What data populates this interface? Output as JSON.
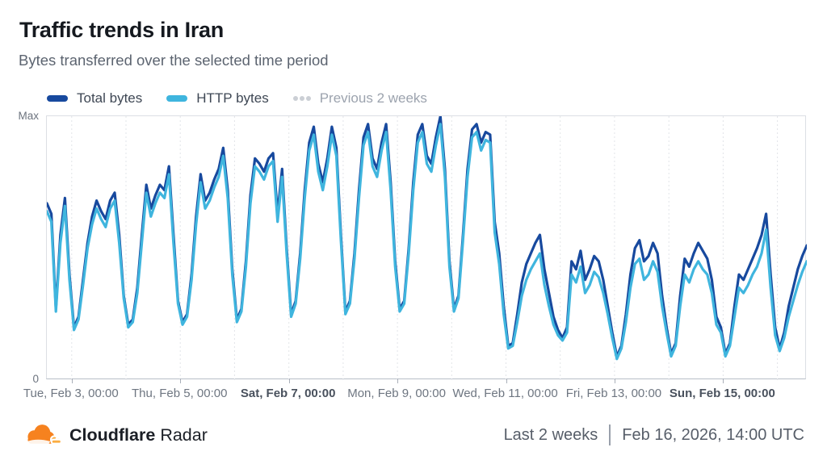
{
  "header": {
    "title": "Traffic trends in Iran",
    "subtitle": "Bytes transferred over the selected time period"
  },
  "legend": [
    {
      "label": "Total bytes",
      "color": "#17499E",
      "style": "solid"
    },
    {
      "label": "HTTP bytes",
      "color": "#3FB5DE",
      "style": "solid"
    },
    {
      "label": "Previous 2 weeks",
      "color": "#CBCFD5",
      "style": "dotted"
    }
  ],
  "chart_data": {
    "type": "line",
    "title": "Traffic trends in Iran",
    "subtitle": "Bytes transferred over the selected time period",
    "units": "percent_of_max",
    "grid": "vertical-daily-dashed",
    "legend_position": "top",
    "y_axis": {
      "max_label": "Max",
      "min_label": "0",
      "range": [
        0,
        100
      ]
    },
    "x_axis": {
      "total_hours": 336,
      "step_hours": 2,
      "first_gridline_offset_hours": 11,
      "gridline_every_hours": 24,
      "label_every_hours": 48,
      "tick_labels": [
        {
          "label": "Tue, Feb 3, 00:00",
          "bold": false
        },
        {
          "label": "Thu, Feb 5, 00:00",
          "bold": false
        },
        {
          "label": "Sat, Feb 7, 00:00",
          "bold": true
        },
        {
          "label": "Mon, Feb 9, 00:00",
          "bold": false
        },
        {
          "label": "Wed, Feb 11, 00:00",
          "bold": false
        },
        {
          "label": "Fri, Feb 13, 00:00",
          "bold": false
        },
        {
          "label": "Sun, Feb 15, 00:00",
          "bold": true
        }
      ]
    },
    "series": [
      {
        "name": "Total bytes",
        "color": "#17499E",
        "width": 3.2,
        "values": [
          67,
          63,
          27,
          55,
          69,
          40,
          20,
          24,
          38,
          52,
          62,
          68,
          64,
          61,
          68,
          71,
          55,
          32,
          21,
          23,
          35,
          55,
          74,
          65,
          70,
          74,
          72,
          81,
          55,
          30,
          22,
          25,
          40,
          62,
          78,
          68,
          71,
          76,
          80,
          88,
          72,
          42,
          23,
          27,
          45,
          70,
          84,
          82,
          79,
          84,
          86,
          63,
          80,
          50,
          25,
          30,
          48,
          72,
          90,
          96,
          82,
          75,
          84,
          96,
          88,
          55,
          26,
          30,
          48,
          72,
          92,
          97,
          84,
          80,
          90,
          97,
          75,
          45,
          27,
          30,
          50,
          75,
          93,
          97,
          85,
          82,
          92,
          100,
          80,
          45,
          27,
          32,
          55,
          80,
          95,
          97,
          90,
          94,
          93,
          60,
          48,
          28,
          13,
          14,
          25,
          37,
          44,
          48,
          52,
          55,
          42,
          33,
          24,
          19,
          16,
          20,
          45,
          42,
          49,
          38,
          42,
          47,
          45,
          38,
          28,
          18,
          9,
          13,
          25,
          40,
          50,
          53,
          45,
          47,
          52,
          48,
          32,
          20,
          10,
          14,
          32,
          46,
          43,
          48,
          52,
          49,
          46,
          38,
          24,
          20,
          10,
          14,
          28,
          40,
          38,
          42,
          46,
          50,
          55,
          63,
          40,
          20,
          12,
          18,
          28,
          35,
          42,
          47,
          51
        ]
      },
      {
        "name": "HTTP bytes",
        "color": "#3FB5DE",
        "width": 3.2,
        "values": [
          64,
          60,
          26,
          52,
          66,
          38,
          19,
          23,
          36,
          50,
          59,
          65,
          61,
          58,
          65,
          68,
          52,
          31,
          20,
          22,
          33,
          52,
          71,
          62,
          67,
          71,
          69,
          78,
          52,
          29,
          21,
          24,
          38,
          59,
          75,
          65,
          68,
          73,
          77,
          85,
          69,
          40,
          22,
          26,
          43,
          67,
          81,
          79,
          76,
          81,
          83,
          60,
          77,
          48,
          24,
          29,
          46,
          69,
          87,
          93,
          79,
          72,
          81,
          93,
          85,
          53,
          25,
          29,
          46,
          69,
          89,
          94,
          81,
          77,
          87,
          94,
          72,
          43,
          26,
          29,
          48,
          72,
          90,
          94,
          82,
          79,
          89,
          97,
          77,
          43,
          26,
          31,
          53,
          77,
          92,
          94,
          87,
          91,
          90,
          56,
          44,
          25,
          12,
          13,
          22,
          32,
          38,
          42,
          45,
          48,
          36,
          28,
          21,
          17,
          15,
          18,
          40,
          37,
          43,
          33,
          36,
          41,
          39,
          33,
          25,
          16,
          8,
          12,
          22,
          35,
          44,
          46,
          38,
          40,
          45,
          41,
          28,
          18,
          9,
          13,
          28,
          40,
          37,
          42,
          45,
          42,
          40,
          33,
          21,
          18,
          9,
          13,
          24,
          35,
          33,
          36,
          40,
          43,
          48,
          57,
          35,
          17,
          11,
          16,
          24,
          30,
          36,
          41,
          45
        ]
      }
    ],
    "previous_period_series_visible": false
  },
  "colors": {
    "grid_dash": "#e2e4e8",
    "plot_border": "#dcdfe4",
    "axis_bottom": "#b8bec7"
  },
  "footer": {
    "brand_bold": "Cloudflare",
    "brand_regular": "Radar",
    "range_label": "Last 2 weeks",
    "timestamp": "Feb 16, 2026, 14:00 UTC",
    "logo": {
      "cloud_main": "#F6821F",
      "cloud_light": "#FBAD41"
    }
  }
}
